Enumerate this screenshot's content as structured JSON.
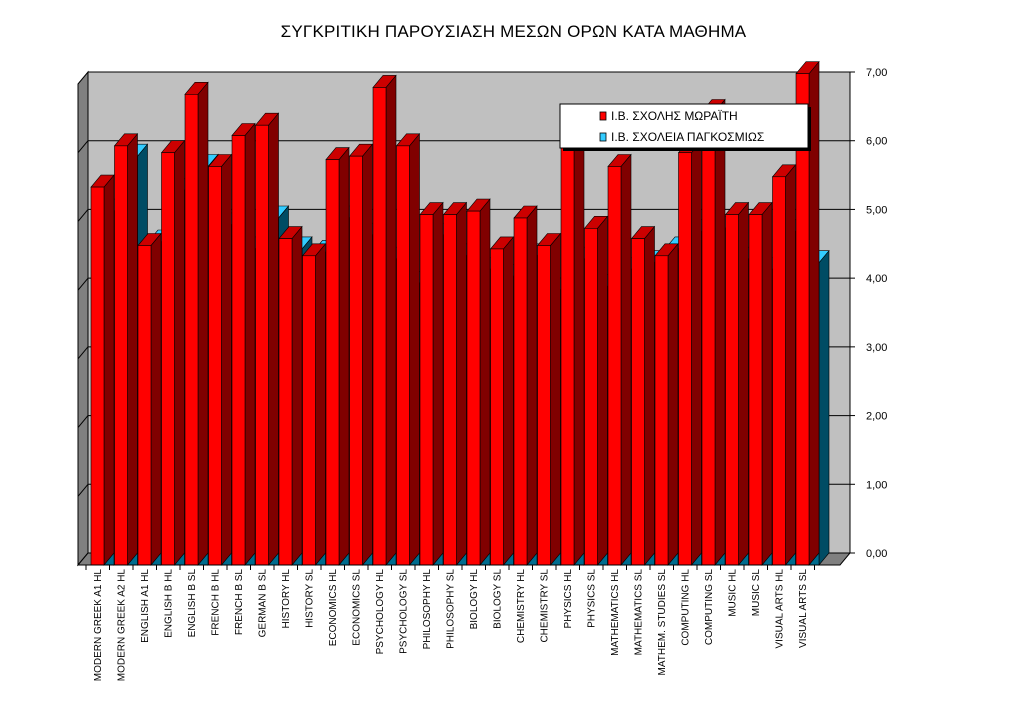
{
  "chart_data": {
    "type": "bar",
    "title": "ΣΥΓΚΡΙΤΙΚΗ ΠΑΡΟΥΣΙΑΣΗ ΜΕΣΩΝ ΟΡΩΝ ΚΑΤΑ ΜΑΘΗΜΑ",
    "xlabel": "",
    "ylabel": "",
    "ylim": [
      0,
      7
    ],
    "yticks": [
      "0,00",
      "1,00",
      "2,00",
      "3,00",
      "4,00",
      "5,00",
      "6,00",
      "7,00"
    ],
    "grid": true,
    "legend_position": "top-right",
    "categories": [
      "MODERN GREEK A1 HL",
      "MODERN GREEK A2 HL",
      "ENGLISH A1  HL",
      "ENGLISH B  HL",
      "ENGLISH B SL",
      "FRENCH B HL",
      "FRENCH B SL",
      "GERMAN B SL",
      "HISTORY HL",
      "HISTORY SL",
      "ECONOMICS HL",
      "ECONOMICS SL",
      "PSYCHOLOGY HL",
      "PSYCHOLOGY SL",
      "PHILOSOPHY HL",
      "PHILOSOPHY SL",
      "BIOLOGY HL",
      "BIOLOGY SL",
      "CHEMISTRY HL",
      "CHEMISTRY SL",
      "PHYSICS HL",
      "PHYSICS SL",
      "MATHEMATICS HL",
      "MATHEMATICS SL",
      "MATHEM.  STUDIES SL",
      "COMPUTING HL",
      "COMPUTING SL",
      "MUSIC HL",
      "MUSIC SL",
      "VISUAL  ARTS HL",
      "VISUAL  ARTS SL"
    ],
    "series": [
      {
        "name": "Ι.Β. ΣΧΟΛΗΣ ΜΩΡΑΪΤΗ",
        "color": "#ff0000",
        "values": [
          5.5,
          6.1,
          4.65,
          6.0,
          6.85,
          5.8,
          6.25,
          6.4,
          4.75,
          4.5,
          5.9,
          5.95,
          6.95,
          6.1,
          5.1,
          5.1,
          5.15,
          4.6,
          5.05,
          4.65,
          6.1,
          4.9,
          5.8,
          4.75,
          4.5,
          6.0,
          6.6,
          5.1,
          5.1,
          5.65,
          7.15
        ]
      },
      {
        "name": "Ι.Β. ΣΧΟΛΕΙΑ ΠΑΓΚΟΣΜΙΩΣ",
        "color": "#33ccff",
        "values": [
          5.15,
          5.95,
          4.7,
          5.45,
          5.8,
          4.95,
          4.6,
          5.05,
          4.6,
          4.55,
          5.05,
          4.8,
          4.45,
          4.1,
          4.8,
          4.5,
          4.3,
          4.2,
          4.5,
          4.0,
          4.45,
          4.05,
          4.3,
          4.4,
          4.6,
          4.85,
          4.9,
          4.45,
          4.3,
          4.85,
          4.4
        ]
      }
    ]
  },
  "colors": {
    "plot_background": "#c0c0c0",
    "wall": "#808080",
    "red_front": "#ff0000",
    "red_side": "#800000",
    "red_top": "#cc0000",
    "blue_front": "#006c8e",
    "blue_side": "#004c64",
    "blue_top": "#33ccff"
  }
}
